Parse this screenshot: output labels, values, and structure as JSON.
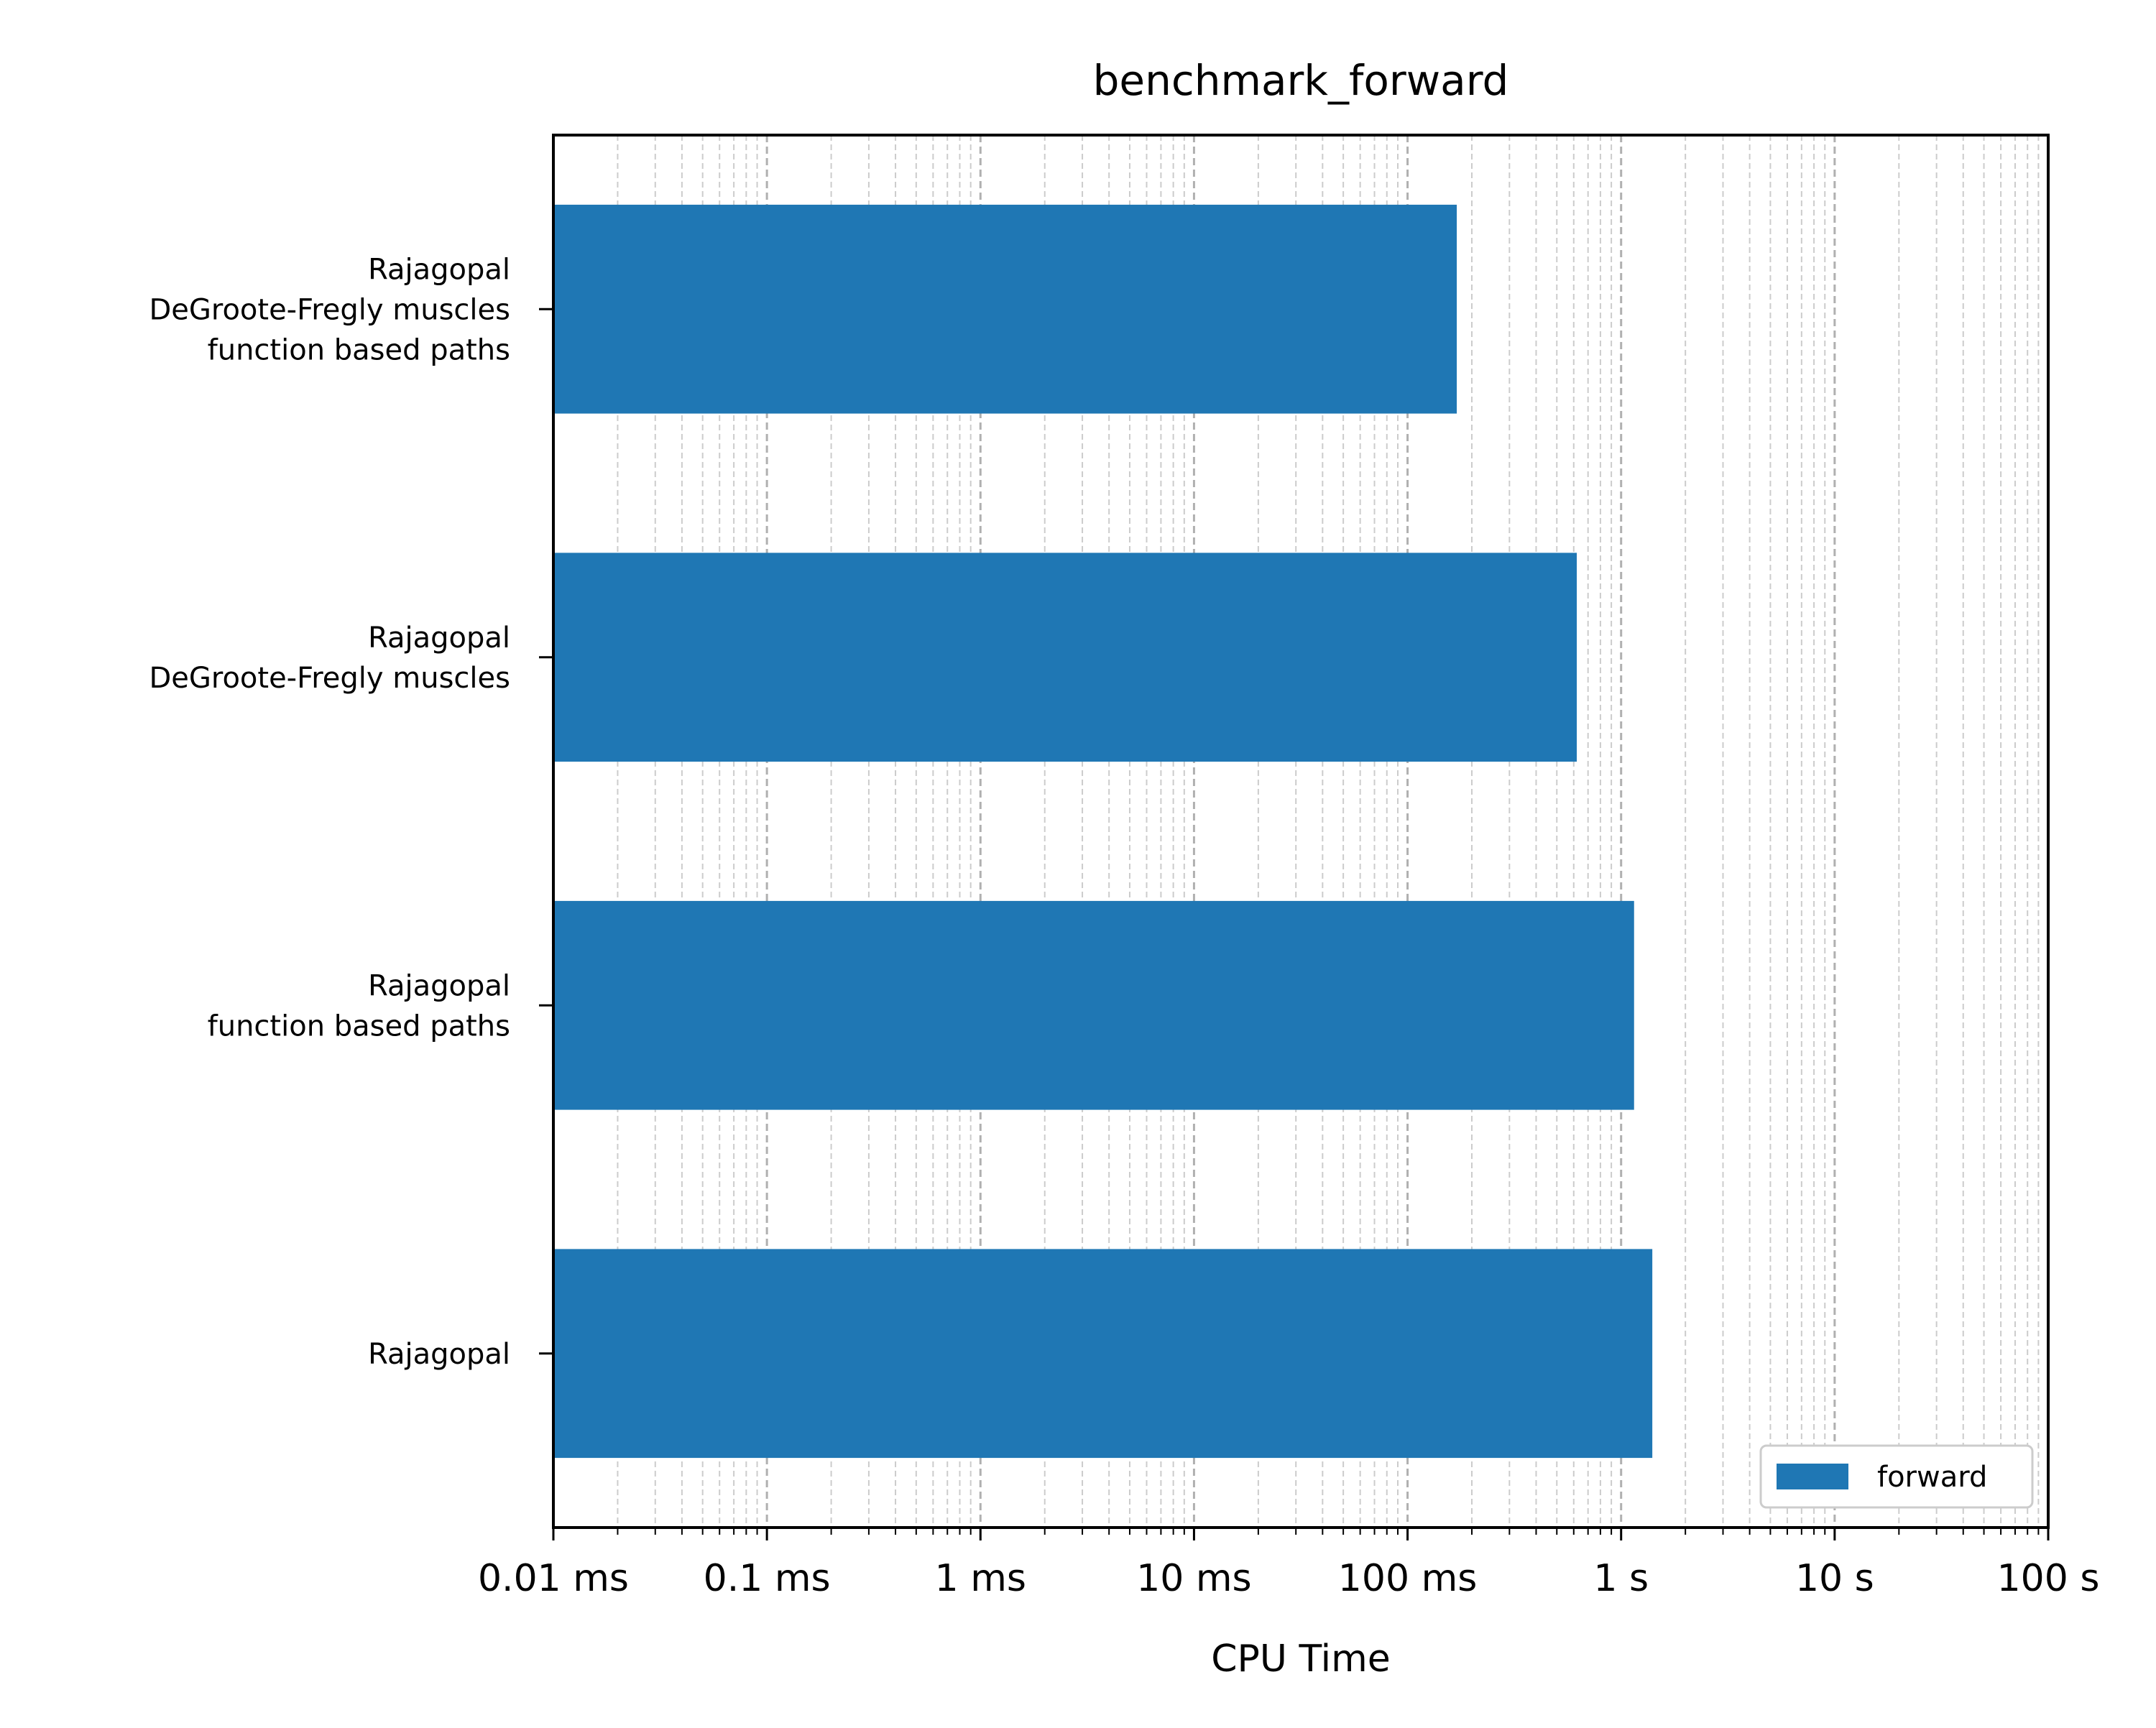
{
  "chart_data": {
    "type": "bar",
    "orientation": "horizontal",
    "title": "benchmark_forward",
    "xlabel": "CPU Time",
    "ylabel": "",
    "x_scale": "log",
    "xlim": [
      "0.01 ms",
      "100 s"
    ],
    "x_ticks": [
      "0.01 ms",
      "0.1 ms",
      "1 ms",
      "10 ms",
      "100 ms",
      "1 s",
      "10 s",
      "100 s"
    ],
    "grid": true,
    "legend_position": "lower-right",
    "categories": [
      [
        "Rajagopal",
        "DeGroote-Fregly muscles",
        "function based paths"
      ],
      [
        "Rajagopal",
        "DeGroote-Fregly muscles"
      ],
      [
        "Rajagopal",
        "function based paths"
      ],
      [
        "Rajagopal"
      ]
    ],
    "series": [
      {
        "name": "forward",
        "unit": "s",
        "values": [
          0.17,
          0.62,
          1.15,
          1.4
        ],
        "color": "#1f77b4"
      }
    ]
  }
}
